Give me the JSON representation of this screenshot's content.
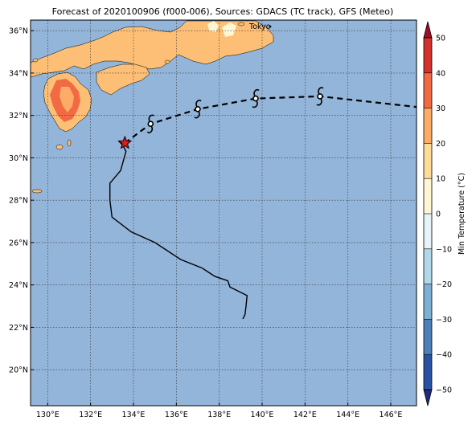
{
  "title": "Forecast of 2020100906 (f000-006), Sources: GDACS (TC track), GFS (Meteo)",
  "map": {
    "lon_range": [
      129.2,
      147.2
    ],
    "lat_range": [
      18.3,
      36.5
    ],
    "lon_ticks": [
      130,
      132,
      134,
      136,
      138,
      140,
      142,
      144,
      146
    ],
    "lat_ticks": [
      20,
      22,
      24,
      26,
      28,
      30,
      32,
      34,
      36
    ],
    "lon_tick_labels": [
      "130°E",
      "132°E",
      "134°E",
      "136°E",
      "138°E",
      "140°E",
      "142°E",
      "144°E",
      "146°E"
    ],
    "lat_tick_labels": [
      "20°N",
      "22°N",
      "24°N",
      "26°N",
      "28°N",
      "30°N",
      "32°N",
      "34°N",
      "36°N"
    ],
    "grid": "dotted",
    "ocean_color": "#93b5da",
    "city_label": "Tokyo"
  },
  "colorbar": {
    "label": "Min Temperature (°C)",
    "min": -50,
    "max": 50,
    "step": 10,
    "tick_labels": [
      "50",
      "40",
      "30",
      "20",
      "10",
      "0",
      "−10",
      "−20",
      "−30",
      "−40",
      "−50"
    ],
    "band_colors": [
      "#202a7e",
      "#2a52a3",
      "#4d80b8",
      "#7eb0d4",
      "#b2d7e8",
      "#e6f3f8",
      "#fff7d4",
      "#fddc99",
      "#fcac67",
      "#f26a43",
      "#d3312b",
      "#a30b25"
    ],
    "extend": "both"
  },
  "chart_data": {
    "type": "map",
    "observed_track": {
      "style": "solid",
      "points": [
        [
          139.1,
          22.4
        ],
        [
          139.2,
          22.6
        ],
        [
          139.25,
          23.0
        ],
        [
          139.3,
          23.5
        ],
        [
          138.5,
          23.9
        ],
        [
          138.4,
          24.2
        ],
        [
          137.8,
          24.4
        ],
        [
          137.2,
          24.8
        ],
        [
          136.2,
          25.2
        ],
        [
          135.0,
          26.0
        ],
        [
          133.9,
          26.5
        ],
        [
          133.0,
          27.2
        ],
        [
          132.9,
          28.0
        ],
        [
          132.9,
          28.8
        ],
        [
          133.4,
          29.4
        ],
        [
          133.65,
          30.3
        ],
        [
          133.5,
          30.6
        ],
        [
          133.3,
          30.8
        ]
      ],
      "current_position": [
        133.6,
        30.7
      ]
    },
    "forecast_track": {
      "style": "dashed",
      "points": [
        [
          133.6,
          30.7
        ],
        [
          134.8,
          31.6
        ],
        [
          137.0,
          32.3
        ],
        [
          139.7,
          32.8
        ],
        [
          142.7,
          32.9
        ],
        [
          147.2,
          32.4
        ]
      ],
      "storm_symbol_positions": [
        [
          134.8,
          31.6
        ],
        [
          137.0,
          32.3
        ],
        [
          139.7,
          32.8
        ],
        [
          142.7,
          32.9
        ]
      ]
    }
  }
}
